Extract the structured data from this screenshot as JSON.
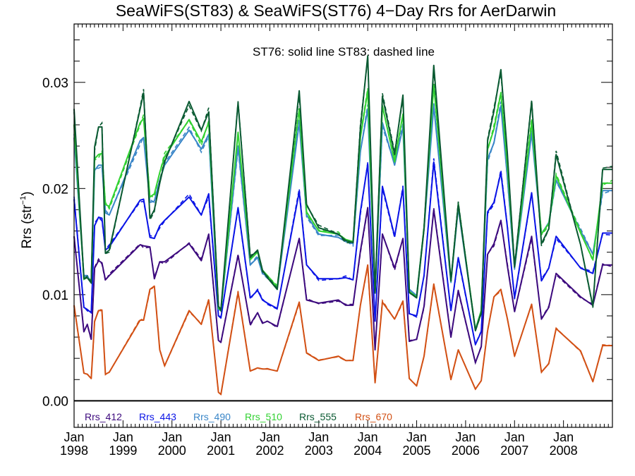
{
  "chart_data": {
    "type": "line",
    "title": "SeaWiFS(ST83) & SeaWiFS(ST76) 4−Day Rrs for AerDarwin",
    "ylabel": "Rrs (str",
    "ylabel_sup": "−1",
    "ylabel_close": ")",
    "annotation": "ST76: solid line   ST83: dashed line",
    "xlim": [
      1998.0,
      2009.0
    ],
    "ylim": [
      -0.0025,
      0.0355
    ],
    "grid": false,
    "zero_line": true,
    "y_ticks": [
      {
        "value": 0.0,
        "label": "0.00"
      },
      {
        "value": 0.01,
        "label": "0.01"
      },
      {
        "value": 0.02,
        "label": "0.02"
      },
      {
        "value": 0.03,
        "label": "0.03"
      }
    ],
    "x_ticks": [
      {
        "value": 1998,
        "month": "Jan",
        "year": "1998"
      },
      {
        "value": 1999,
        "month": "Jan",
        "year": "1999"
      },
      {
        "value": 2000,
        "month": "Jan",
        "year": "2000"
      },
      {
        "value": 2001,
        "month": "Jan",
        "year": "2001"
      },
      {
        "value": 2002,
        "month": "Jan",
        "year": "2002"
      },
      {
        "value": 2003,
        "month": "Jan",
        "year": "2003"
      },
      {
        "value": 2004,
        "month": "Jan",
        "year": "2004"
      },
      {
        "value": 2005,
        "month": "Jan",
        "year": "2005"
      },
      {
        "value": 2006,
        "month": "Jan",
        "year": "2006"
      },
      {
        "value": 2007,
        "month": "Jan",
        "year": "2007"
      },
      {
        "value": 2008,
        "month": "Jan",
        "year": "2008"
      }
    ],
    "legend_placement": "bottom-left inside",
    "x": [
      1998.0,
      1998.2,
      1998.27,
      1998.35,
      1998.42,
      1998.5,
      1998.57,
      1998.64,
      1998.72,
      1999.35,
      1999.42,
      1999.55,
      1999.64,
      1999.75,
      1999.85,
      2000.35,
      2000.6,
      2000.75,
      2000.95,
      2001.0,
      2001.35,
      2001.6,
      2001.75,
      2001.85,
      2001.95,
      2002.15,
      2002.6,
      2002.75,
      2003.0,
      2003.4,
      2003.55,
      2003.7,
      2003.85,
      2004.0,
      2004.15,
      2004.3,
      2004.55,
      2004.72,
      2004.85,
      2005.0,
      2005.15,
      2005.35,
      2005.7,
      2005.85,
      2006.2,
      2006.32,
      2006.45,
      2006.58,
      2006.72,
      2006.85,
      2007.0,
      2007.35,
      2007.55,
      2007.7,
      2007.85,
      2008.35,
      2008.6,
      2008.8,
      2009.0
    ],
    "series": [
      {
        "name": "Rrs_412",
        "color": "#3d0a7e",
        "values": [
          0.0155,
          0.0065,
          0.0072,
          0.0058,
          0.0125,
          0.0132,
          0.013,
          0.0114,
          0.0118,
          0.0147,
          0.0146,
          0.0145,
          0.0115,
          0.0131,
          0.0131,
          0.0148,
          0.0132,
          0.0157,
          0.0057,
          0.0055,
          0.0137,
          0.0072,
          0.0083,
          0.0073,
          0.0075,
          0.007,
          0.0153,
          0.0095,
          0.0092,
          0.0095,
          0.009,
          0.009,
          0.0141,
          0.0182,
          0.0048,
          0.0157,
          0.0125,
          0.0153,
          0.0056,
          0.0058,
          0.0089,
          0.018,
          0.006,
          0.0104,
          0.0036,
          0.0051,
          0.0138,
          0.0148,
          0.017,
          0.0128,
          0.0084,
          0.0155,
          0.0077,
          0.0088,
          0.012,
          0.0098,
          0.009,
          0.0128,
          0.0128
        ]
      },
      {
        "name": "Rrs_443",
        "color": "#0a14e6",
        "values": [
          0.019,
          0.0088,
          0.0086,
          0.0083,
          0.0165,
          0.0173,
          0.0172,
          0.0142,
          0.0145,
          0.0189,
          0.019,
          0.0154,
          0.0153,
          0.0165,
          0.017,
          0.0192,
          0.0175,
          0.0195,
          0.008,
          0.0078,
          0.0182,
          0.0097,
          0.0104,
          0.0095,
          0.0092,
          0.0087,
          0.0197,
          0.0128,
          0.0115,
          0.0115,
          0.0116,
          0.0114,
          0.0178,
          0.0223,
          0.0075,
          0.0202,
          0.0155,
          0.02,
          0.0082,
          0.008,
          0.0118,
          0.0225,
          0.0085,
          0.0135,
          0.0053,
          0.0065,
          0.0178,
          0.0187,
          0.0215,
          0.0165,
          0.0097,
          0.0196,
          0.0113,
          0.0125,
          0.0155,
          0.0125,
          0.012,
          0.0158,
          0.0158
        ]
      },
      {
        "name": "Rrs_490",
        "color": "#3a86c8",
        "values": [
          0.0248,
          0.0118,
          0.0118,
          0.0111,
          0.0217,
          0.0222,
          0.0222,
          0.0177,
          0.0175,
          0.0245,
          0.0248,
          0.0187,
          0.0188,
          0.0208,
          0.0222,
          0.0255,
          0.0237,
          0.0251,
          0.0086,
          0.0085,
          0.024,
          0.0128,
          0.0135,
          0.012,
          0.0117,
          0.0105,
          0.0262,
          0.0175,
          0.0157,
          0.0154,
          0.015,
          0.0148,
          0.0235,
          0.0275,
          0.0103,
          0.0262,
          0.0222,
          0.0258,
          0.0105,
          0.0099,
          0.0162,
          0.0278,
          0.0112,
          0.0182,
          0.0067,
          0.0085,
          0.0228,
          0.0243,
          0.0278,
          0.0212,
          0.0125,
          0.0252,
          0.0157,
          0.0168,
          0.0208,
          0.016,
          0.0138,
          0.0198,
          0.0198
        ]
      },
      {
        "name": "Rrs_510",
        "color": "#32d232",
        "values": [
          0.026,
          0.0116,
          0.0116,
          0.0112,
          0.0228,
          0.0232,
          0.0233,
          0.0185,
          0.0183,
          0.0262,
          0.0266,
          0.0192,
          0.0195,
          0.0215,
          0.023,
          0.0265,
          0.0244,
          0.0262,
          0.0087,
          0.0086,
          0.0253,
          0.0133,
          0.014,
          0.0123,
          0.0118,
          0.0107,
          0.0275,
          0.0178,
          0.016,
          0.0157,
          0.0152,
          0.015,
          0.0248,
          0.0292,
          0.0103,
          0.0278,
          0.0225,
          0.027,
          0.0103,
          0.0098,
          0.0163,
          0.0298,
          0.0113,
          0.0185,
          0.0067,
          0.0085,
          0.0237,
          0.0256,
          0.029,
          0.0224,
          0.0127,
          0.0262,
          0.0157,
          0.0167,
          0.0212,
          0.0158,
          0.0133,
          0.0205,
          0.0205
        ]
      },
      {
        "name": "Rrs_555",
        "color": "#0a5a32",
        "values": [
          0.0275,
          0.0115,
          0.0116,
          0.0111,
          0.0239,
          0.0258,
          0.0258,
          0.0139,
          0.0142,
          0.0275,
          0.029,
          0.0172,
          0.018,
          0.0205,
          0.0225,
          0.0282,
          0.0255,
          0.0272,
          0.0089,
          0.0086,
          0.0281,
          0.0135,
          0.0142,
          0.0123,
          0.0116,
          0.0105,
          0.0292,
          0.0185,
          0.0163,
          0.0157,
          0.0151,
          0.0149,
          0.0257,
          0.0325,
          0.0102,
          0.0287,
          0.0232,
          0.0288,
          0.0102,
          0.0097,
          0.0162,
          0.0316,
          0.0113,
          0.0185,
          0.0066,
          0.0083,
          0.0245,
          0.0273,
          0.0312,
          0.0235,
          0.0126,
          0.0282,
          0.0148,
          0.0162,
          0.0232,
          0.0147,
          0.0089,
          0.0218,
          0.0218
        ]
      },
      {
        "name": "Rrs_670",
        "color": "#d25014",
        "values": [
          0.009,
          0.0026,
          0.0025,
          0.0021,
          0.0075,
          0.0085,
          0.0085,
          0.0025,
          0.0027,
          0.0076,
          0.0076,
          0.0105,
          0.0108,
          0.0048,
          0.0033,
          0.0085,
          0.0072,
          0.0095,
          0.0008,
          0.0006,
          0.0102,
          0.0028,
          0.0031,
          0.003,
          0.003,
          0.0028,
          0.0093,
          0.0045,
          0.0038,
          0.0042,
          0.0038,
          0.0038,
          0.009,
          0.0128,
          0.0017,
          0.0093,
          0.0077,
          0.0094,
          0.0021,
          0.0014,
          0.0042,
          0.011,
          0.002,
          0.0048,
          0.0011,
          0.0019,
          0.0066,
          0.0098,
          0.0105,
          0.0078,
          0.0042,
          0.0091,
          0.0027,
          0.0035,
          0.0068,
          0.0047,
          0.0018,
          0.0052,
          0.0052
        ]
      }
    ]
  }
}
